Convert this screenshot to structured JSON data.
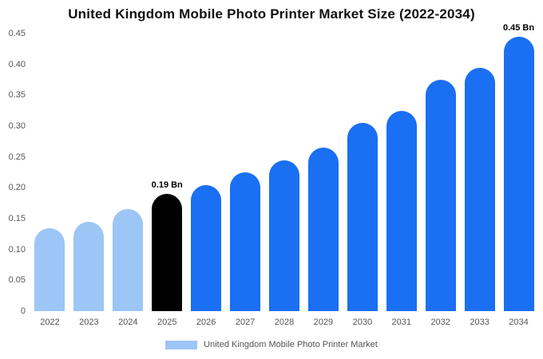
{
  "title": "United Kingdom Mobile Photo Printer Market Size (2022-2034)",
  "legend": {
    "label": "United Kingdom Mobile Photo Printer Market",
    "swatch_color": "#9cc6f5"
  },
  "colors": {
    "light": "#9cc6f5",
    "primary": "#1a6ff2",
    "highlight": "#000000",
    "axis_text": "#555555"
  },
  "chart_data": {
    "type": "bar",
    "title": "United Kingdom Mobile Photo Printer Market Size (2022-2034)",
    "categories": [
      "2022",
      "2023",
      "2024",
      "2025",
      "2026",
      "2027",
      "2028",
      "2029",
      "2030",
      "2031",
      "2032",
      "2033",
      "2034"
    ],
    "values": [
      0.135,
      0.145,
      0.165,
      0.19,
      0.205,
      0.225,
      0.245,
      0.265,
      0.305,
      0.325,
      0.375,
      0.395,
      0.445
    ],
    "bar_colors": [
      "light",
      "light",
      "light",
      "highlight",
      "primary",
      "primary",
      "primary",
      "primary",
      "primary",
      "primary",
      "primary",
      "primary",
      "primary"
    ],
    "annotations": [
      {
        "index": 3,
        "text": "0.19 Bn"
      },
      {
        "index": 12,
        "text": "0.45 Bn"
      }
    ],
    "xlabel": "",
    "ylabel": "",
    "ylim": [
      0,
      0.45
    ],
    "yticks": [
      0,
      0.05,
      0.1,
      0.15,
      0.2,
      0.25,
      0.3,
      0.35,
      0.4,
      0.45
    ],
    "ytick_labels": [
      "0",
      "0.05",
      "0.10",
      "0.15",
      "0.20",
      "0.25",
      "0.30",
      "0.35",
      "0.40",
      "0.45"
    ],
    "grid": false,
    "legend_position": "bottom"
  }
}
